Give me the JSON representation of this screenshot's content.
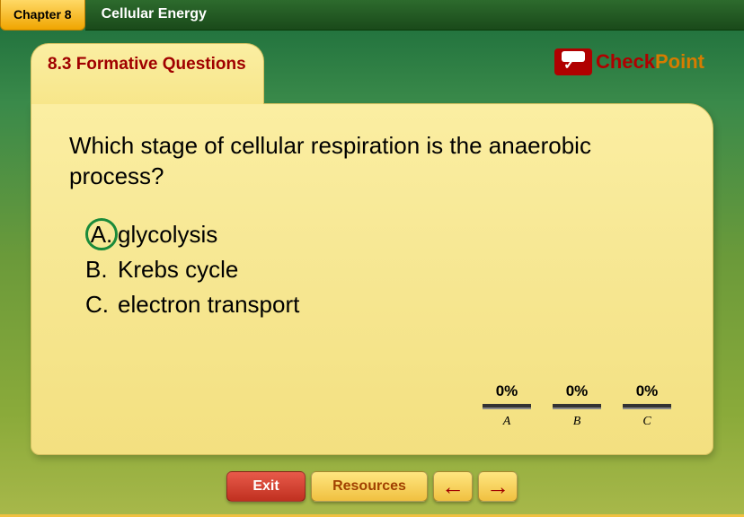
{
  "header": {
    "chapter_label": "Chapter 8",
    "title": "Cellular Energy"
  },
  "section": {
    "number": "8.3",
    "heading": "8.3 Formative Questions"
  },
  "checkpoint": {
    "check": "Check",
    "point": "Point"
  },
  "question": {
    "text": "Which stage of cellular respiration is the anaerobic process?",
    "options": [
      {
        "letter": "A.",
        "text": "glycolysis",
        "correct": true
      },
      {
        "letter": "B.",
        "text": "Krebs cycle",
        "correct": false
      },
      {
        "letter": "C.",
        "text": "electron transport",
        "correct": false
      }
    ]
  },
  "poll": {
    "items": [
      {
        "pct": "0%",
        "label": "A"
      },
      {
        "pct": "0%",
        "label": "B"
      },
      {
        "pct": "0%",
        "label": "C"
      }
    ],
    "bar_color": "#333333"
  },
  "nav": {
    "exit": "Exit",
    "resources": "Resources",
    "back": "←",
    "forward": "→"
  },
  "colors": {
    "accent_red": "#a00000",
    "accent_orange": "#d67c00",
    "correct_ring": "#1a8a3a",
    "card_bg_top": "#fbeea2",
    "card_bg_bottom": "#f3e080"
  }
}
